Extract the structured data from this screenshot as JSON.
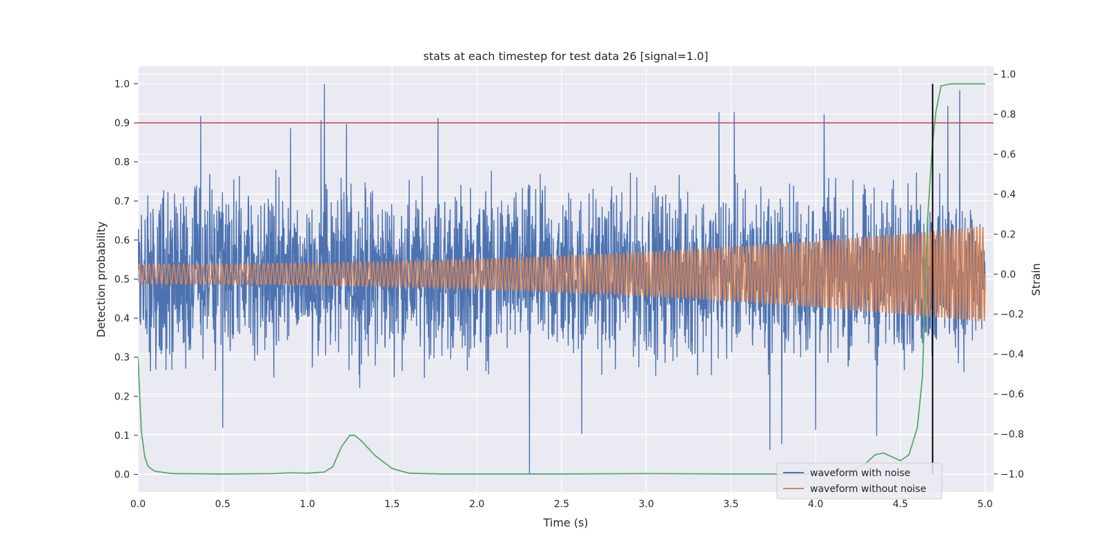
{
  "chart_data": {
    "type": "line",
    "title": "stats at each timestep for test data 26 [signal=1.0]",
    "xlabel": "Time (s)",
    "ylabel": "Detection probability",
    "ylabel_right": "Strain",
    "xlim": [
      0.0,
      5.05
    ],
    "ylim": [
      -0.045,
      1.045
    ],
    "ylim_right": [
      -1.09,
      1.04
    ],
    "x_ticks": [
      "0.0",
      "0.5",
      "1.0",
      "1.5",
      "2.0",
      "2.5",
      "3.0",
      "3.5",
      "4.0",
      "4.5",
      "5.0"
    ],
    "y_ticks": [
      "0.0",
      "0.1",
      "0.2",
      "0.3",
      "0.4",
      "0.5",
      "0.6",
      "0.7",
      "0.8",
      "0.9",
      "1.0"
    ],
    "y_right_ticks": [
      "−1.0",
      "−0.8",
      "−0.6",
      "−0.4",
      "−0.2",
      "0.0",
      "0.2",
      "0.4",
      "0.6",
      "0.8",
      "1.0"
    ],
    "grid": true,
    "legend_position": "lower right",
    "threshold_value": 0.9,
    "threshold_color": "#c44e52",
    "detection_time": 4.69,
    "detection_line_color": "#000000",
    "probability_color": "#55a868",
    "probability_curve": {
      "x": [
        0.0,
        0.02,
        0.04,
        0.06,
        0.1,
        0.2,
        0.5,
        0.8,
        0.9,
        1.0,
        1.1,
        1.15,
        1.2,
        1.25,
        1.28,
        1.32,
        1.4,
        1.5,
        1.6,
        1.8,
        2.5,
        3.0,
        3.5,
        4.0,
        4.2,
        4.3,
        4.35,
        4.4,
        4.45,
        4.5,
        4.55,
        4.6,
        4.63,
        4.66,
        4.69,
        4.71,
        4.74,
        4.8,
        5.0
      ],
      "y": [
        0.3,
        0.11,
        0.045,
        0.02,
        0.008,
        0.002,
        0.001,
        0.002,
        0.004,
        0.003,
        0.006,
        0.02,
        0.07,
        0.1,
        0.1,
        0.085,
        0.048,
        0.015,
        0.003,
        0.001,
        0.001,
        0.002,
        0.001,
        0.001,
        0.004,
        0.03,
        0.05,
        0.055,
        0.045,
        0.035,
        0.05,
        0.12,
        0.25,
        0.65,
        0.85,
        0.93,
        0.995,
        1.0,
        1.0
      ]
    },
    "noisy_waveform": {
      "name": "waveform with noise",
      "color": "#4c72b0",
      "axis": "right",
      "noise_amplitude": 0.2,
      "x_range": [
        0.0,
        5.0
      ],
      "strain_min": -1.0,
      "strain_max": 0.95,
      "spikes": [
        {
          "x": 0.37,
          "y": 0.79
        },
        {
          "x": 1.1,
          "y": 0.95
        },
        {
          "x": 1.08,
          "y": 0.77
        },
        {
          "x": 1.77,
          "y": 0.78
        },
        {
          "x": 1.23,
          "y": 0.75
        },
        {
          "x": 2.31,
          "y": -1.0
        },
        {
          "x": 0.5,
          "y": -0.77
        },
        {
          "x": 2.62,
          "y": -0.8
        },
        {
          "x": 3.43,
          "y": 0.81
        },
        {
          "x": 3.52,
          "y": 0.81
        },
        {
          "x": 3.73,
          "y": -0.88
        },
        {
          "x": 4.36,
          "y": -0.81
        },
        {
          "x": 4.85,
          "y": 0.92
        },
        {
          "x": 4.78,
          "y": 0.84
        },
        {
          "x": 3.8,
          "y": -0.85
        },
        {
          "x": 4.0,
          "y": -0.78
        },
        {
          "x": 0.9,
          "y": 0.73
        },
        {
          "x": 4.05,
          "y": 0.8
        }
      ]
    },
    "clean_waveform": {
      "name": "waveform without noise",
      "color": "#dd8452",
      "axis": "right",
      "x_range": [
        0.0,
        5.0
      ],
      "cycles_approx": 225,
      "amplitude_start": 0.05,
      "amplitude_end": 0.24
    }
  }
}
